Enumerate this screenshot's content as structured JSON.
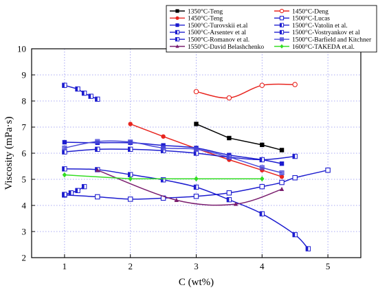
{
  "chart_data": {
    "type": "line",
    "xlabel": "C (wt%)",
    "ylabel": "Viscosity (mPa·s)",
    "xlim": [
      0.5,
      5.5
    ],
    "ylim": [
      2,
      10
    ],
    "xticks": [
      1,
      2,
      3,
      4,
      5
    ],
    "yticks": [
      2,
      3,
      4,
      5,
      6,
      7,
      8,
      9,
      10
    ],
    "grid": true,
    "legend_position": "top-right",
    "series": [
      {
        "name": "1350°C-Teng",
        "color": "#000000",
        "marker": "square-filled",
        "points": [
          [
            3,
            7.12
          ],
          [
            3.5,
            6.58
          ],
          [
            4,
            6.32
          ],
          [
            4.3,
            6.12
          ]
        ]
      },
      {
        "name": "1450°C-Deng",
        "color": "#e8251f",
        "marker": "circle-open",
        "smooth": true,
        "points": [
          [
            3,
            8.36
          ],
          [
            3.5,
            8.12
          ],
          [
            4,
            8.6
          ],
          [
            4.5,
            8.63
          ]
        ]
      },
      {
        "name": "1450°C-Teng",
        "color": "#e8251f",
        "marker": "circle-filled",
        "points": [
          [
            2,
            7.12
          ],
          [
            2.5,
            6.64
          ],
          [
            3,
            6.18
          ],
          [
            3.5,
            5.75
          ],
          [
            4,
            5.35
          ],
          [
            4.3,
            5.1
          ]
        ]
      },
      {
        "name": "1500°C-Lucas",
        "color": "#1c1ccf",
        "marker": "square-open",
        "smooth": true,
        "points": [
          [
            1,
            4.4
          ],
          [
            1.5,
            4.33
          ],
          [
            2,
            4.24
          ],
          [
            2.5,
            4.28
          ],
          [
            3,
            4.35
          ],
          [
            3.5,
            4.48
          ],
          [
            4,
            4.72
          ],
          [
            4.3,
            4.88
          ],
          [
            4.5,
            5.06
          ],
          [
            5,
            5.35
          ]
        ]
      },
      {
        "name": "1500°C-Turovskii et.al",
        "color": "#1c1ccf",
        "marker": "square-filled",
        "smooth": true,
        "points": [
          [
            1,
            6.42
          ],
          [
            1.5,
            6.4
          ],
          [
            2,
            6.4
          ],
          [
            2.5,
            6.3
          ],
          [
            3,
            6.2
          ],
          [
            3.5,
            5.93
          ],
          [
            4,
            5.75
          ],
          [
            4.3,
            5.6
          ]
        ]
      },
      {
        "name": "1500°C-Vatolin et al.",
        "color": "#1c1ccf",
        "marker": "half-square",
        "points": [
          [
            1,
            8.6
          ],
          [
            1.2,
            8.46
          ],
          [
            1.3,
            8.3
          ],
          [
            1.4,
            8.18
          ],
          [
            1.5,
            8.07
          ]
        ]
      },
      {
        "name": "1500°C-Arsentev et al",
        "color": "#1c1ccf",
        "marker": "half-square",
        "smooth": true,
        "points": [
          [
            1,
            5.4
          ],
          [
            1.5,
            5.37
          ],
          [
            2,
            5.18
          ],
          [
            2.5,
            4.98
          ],
          [
            3,
            4.7
          ],
          [
            3.5,
            4.22
          ],
          [
            4,
            3.68
          ],
          [
            4.5,
            2.88
          ],
          [
            4.7,
            2.34
          ]
        ]
      },
      {
        "name": "1500°C-Vostryankov et al",
        "color": "#1c1ccf",
        "marker": "half-square",
        "points": [
          [
            1,
            4.42
          ],
          [
            1.1,
            4.48
          ],
          [
            1.2,
            4.57
          ],
          [
            1.3,
            4.72
          ]
        ]
      },
      {
        "name": "1500°C-Romanov  et al.",
        "color": "#1c1ccf",
        "marker": "half-square",
        "smooth": true,
        "points": [
          [
            1,
            6.05
          ],
          [
            1.5,
            6.15
          ],
          [
            2,
            6.15
          ],
          [
            2.5,
            6.1
          ],
          [
            3,
            6.0
          ],
          [
            3.5,
            5.85
          ],
          [
            4,
            5.75
          ],
          [
            4.5,
            5.88
          ]
        ]
      },
      {
        "name": "1500°C-Barfield and Kitchner",
        "color": "#4b4bd9",
        "marker": "square-filled-light",
        "smooth": true,
        "points": [
          [
            1,
            6.2
          ],
          [
            1.5,
            6.45
          ],
          [
            2,
            6.43
          ],
          [
            2.5,
            6.2
          ],
          [
            3,
            6.15
          ],
          [
            3.5,
            5.85
          ],
          [
            4,
            5.45
          ],
          [
            4.3,
            5.25
          ]
        ]
      },
      {
        "name": "1550°C-David Belashchenko",
        "color": "#7a1d6e",
        "marker": "triangle-filled",
        "smooth": true,
        "points": [
          [
            1.5,
            5.35
          ],
          [
            2.7,
            4.2
          ],
          [
            3.6,
            4.05
          ],
          [
            4.3,
            4.62
          ]
        ]
      },
      {
        "name": "1600°C-TAKEDA et.al.",
        "color": "#33dd22",
        "marker": "diamond-filled",
        "points": [
          [
            1,
            5.17
          ],
          [
            2,
            5.02
          ],
          [
            3,
            5.02
          ],
          [
            4,
            5.02
          ]
        ]
      }
    ]
  }
}
